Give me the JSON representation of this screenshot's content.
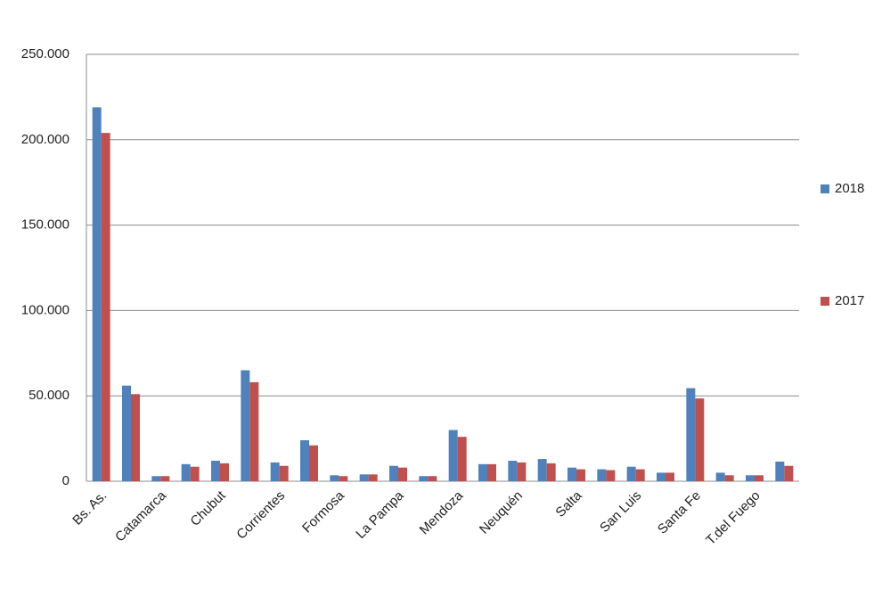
{
  "chart_data": {
    "type": "bar",
    "categories": [
      "Bs. As.",
      null,
      "Catamarca",
      null,
      "Chubut",
      null,
      "Corrientes",
      null,
      "Formosa",
      null,
      "La Pampa",
      null,
      "Mendoza",
      null,
      "Neuquén",
      null,
      "Salta",
      null,
      "San Luis",
      null,
      "Santa Fe",
      null,
      "T.del Fuego",
      null
    ],
    "series": [
      {
        "name": "2018",
        "color": "#4f81bd",
        "values": [
          219000,
          56000,
          3000,
          10000,
          12000,
          65000,
          11000,
          24000,
          3500,
          4000,
          9000,
          3000,
          30000,
          10000,
          12000,
          13000,
          8000,
          7000,
          8500,
          5000,
          54500,
          5000,
          3500,
          11500
        ]
      },
      {
        "name": "2017",
        "color": "#c0504d",
        "values": [
          204000,
          51000,
          3000,
          8500,
          10500,
          58000,
          9000,
          21000,
          3000,
          4000,
          8000,
          3000,
          26000,
          10000,
          11000,
          10500,
          7000,
          6500,
          7000,
          5000,
          48500,
          3500,
          3500,
          9000
        ]
      }
    ],
    "ylim": [
      0,
      250000
    ],
    "yticks": [
      0,
      {
        "value": 50000,
        "label": "50.000"
      },
      {
        "value": 100000,
        "label": "100.000"
      },
      {
        "value": 150000,
        "label": "150.000"
      },
      {
        "value": 200000,
        "label": "200.000"
      },
      {
        "value": 250000,
        "label": "250.000"
      }
    ],
    "grid": true,
    "legend": "right"
  }
}
